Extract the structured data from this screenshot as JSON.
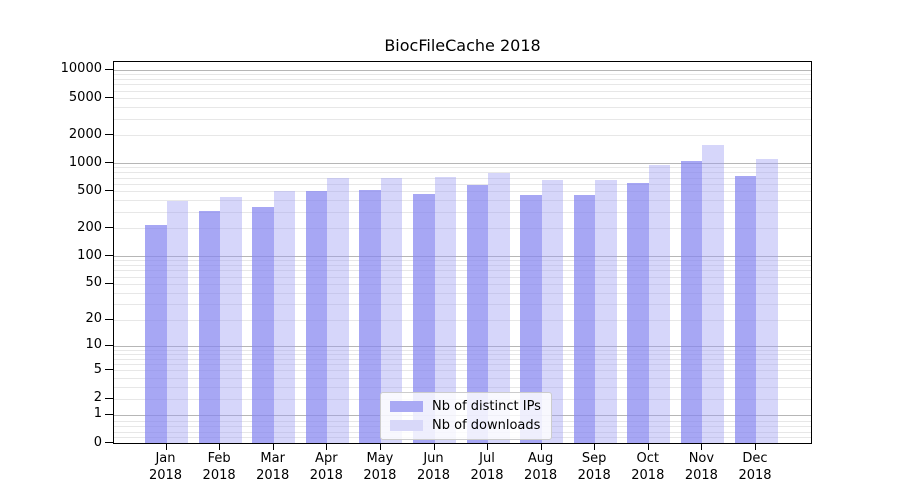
{
  "title": "BiocFileCache 2018",
  "chart_data": {
    "type": "bar",
    "title": "BiocFileCache 2018",
    "categories": [
      "Jan",
      "Feb",
      "Mar",
      "Apr",
      "May",
      "Jun",
      "Jul",
      "Aug",
      "Sep",
      "Oct",
      "Nov",
      "Dec"
    ],
    "year_label": "2018",
    "series": [
      {
        "name": "Nb of distinct IPs",
        "key": "ips",
        "color_solid": "#a9a9f4",
        "color_bar": "rgba(133,133,240,0.72)",
        "values": [
          215,
          310,
          340,
          505,
          515,
          470,
          580,
          455,
          460,
          610,
          1050,
          730
        ]
      },
      {
        "name": "Nb of downloads",
        "key": "downloads",
        "color_solid": "#d8d8f9",
        "color_bar": "rgba(158,158,242,0.42)",
        "values": [
          390,
          430,
          500,
          690,
          690,
          715,
          790,
          655,
          655,
          950,
          1560,
          1100
        ]
      }
    ],
    "yscale": "log1p",
    "yticks": [
      0,
      1,
      2,
      5,
      10,
      20,
      50,
      100,
      200,
      500,
      1000,
      2000,
      5000,
      10000
    ],
    "ylim": [
      0,
      12150
    ],
    "grid": "on",
    "grid_major_at": [
      1,
      10,
      100,
      1000,
      10000
    ],
    "legend_position": "inside-bottom-center",
    "colors": {
      "grid_major": "#b6b6b6",
      "grid_minor": "#e7e7e7",
      "axis": "#000000",
      "background": "#ffffff"
    }
  }
}
